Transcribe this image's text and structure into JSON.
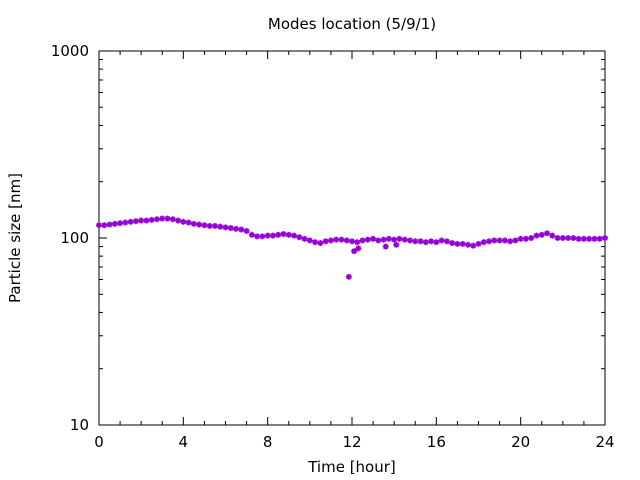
{
  "chart_data": {
    "type": "scatter",
    "title": "Modes location (5/9/1)",
    "xlabel": "Time [hour]",
    "ylabel": "Particle size [nm]",
    "xlim": [
      0,
      24
    ],
    "ylim": [
      10,
      1000
    ],
    "yscale": "log",
    "xticks": [
      0,
      4,
      8,
      12,
      16,
      20,
      24
    ],
    "xtick_labels": [
      "0",
      "4",
      "8",
      "12",
      "16",
      "20",
      "24"
    ],
    "yticks": [
      10,
      100,
      1000
    ],
    "ytick_labels": [
      "10",
      "100",
      "1000"
    ],
    "grid": false,
    "marker_color": "#9400d3",
    "series": [
      {
        "x": [
          0.0,
          0.25,
          0.5,
          0.75,
          1.0,
          1.25,
          1.5,
          1.75,
          2.0,
          2.25,
          2.5,
          2.75,
          3.0,
          3.25,
          3.5,
          3.75,
          4.0,
          4.25,
          4.5,
          4.75,
          5.0,
          5.25,
          5.5,
          5.75,
          6.0,
          6.25,
          6.5,
          6.75,
          7.0,
          7.25,
          7.5,
          7.75,
          8.0,
          8.25,
          8.5,
          8.75,
          9.0,
          9.25,
          9.5,
          9.75,
          10.0,
          10.25,
          10.5,
          10.75,
          11.0,
          11.25,
          11.5,
          11.75,
          11.85,
          12.0,
          12.25,
          12.5,
          12.75,
          13.0,
          13.25,
          13.5,
          13.6,
          13.75,
          14.0,
          14.1,
          14.25,
          14.5,
          14.75,
          15.0,
          15.25,
          15.5,
          15.75,
          16.0,
          16.25,
          16.5,
          16.75,
          17.0,
          17.25,
          17.5,
          17.75,
          18.0,
          18.25,
          18.5,
          18.75,
          19.0,
          19.25,
          19.5,
          19.75,
          20.0,
          20.25,
          20.5,
          20.75,
          21.0,
          21.25,
          21.5,
          21.75,
          22.0,
          22.25,
          22.5,
          22.75,
          23.0,
          23.25,
          23.5,
          23.75,
          24.0,
          12.1,
          12.3
        ],
        "y": [
          117,
          117,
          118,
          119,
          120,
          121,
          122,
          123,
          124,
          124,
          125,
          126,
          127,
          127,
          126,
          124,
          122,
          121,
          119,
          118,
          117,
          116,
          116,
          115,
          114,
          113,
          112,
          111,
          109,
          104,
          102,
          102,
          103,
          103,
          104,
          105,
          104,
          103,
          101,
          99,
          97,
          95,
          94,
          96,
          97,
          98,
          98,
          97,
          62,
          96,
          95,
          97,
          98,
          99,
          97,
          98,
          90,
          99,
          98,
          92,
          99,
          98,
          97,
          96,
          96,
          95,
          96,
          95,
          97,
          96,
          94,
          93,
          93,
          92,
          91,
          93,
          95,
          96,
          97,
          97,
          97,
          96,
          97,
          99,
          99,
          100,
          103,
          104,
          106,
          103,
          100,
          100,
          100,
          100,
          99,
          99,
          99,
          99,
          99,
          100,
          85,
          88
        ]
      }
    ]
  }
}
